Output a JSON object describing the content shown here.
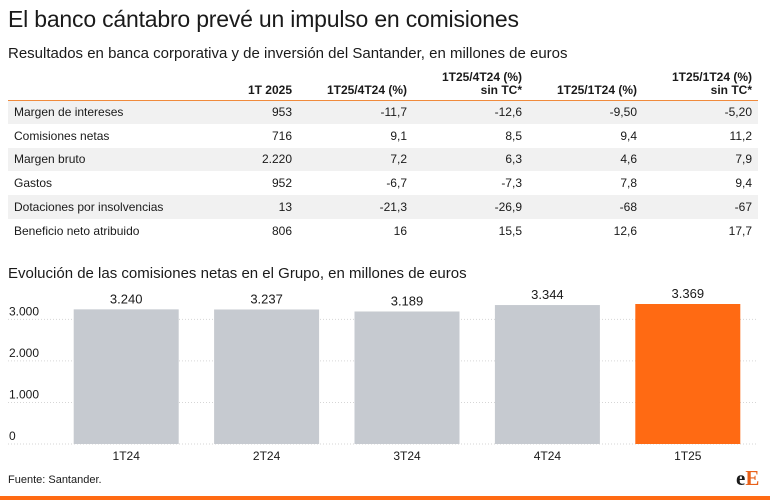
{
  "title": "El banco cántabro prevé un impulso en comisiones",
  "table_subtitle": "Resultados en banca corporativa y de inversión del Santander, en millones de euros",
  "table": {
    "headers": [
      "",
      "1T 2025",
      "1T25/4T24 (%)",
      "1T25/4T24 (%)\nsin TC*",
      "1T25/1T24 (%)",
      "1T25/1T24 (%)\nsin TC*"
    ],
    "rows": [
      [
        "Margen de intereses",
        "953",
        "-11,7",
        "-12,6",
        "-9,50",
        "-5,20"
      ],
      [
        "Comisiones netas",
        "716",
        "9,1",
        "8,5",
        "9,4",
        "11,2"
      ],
      [
        "Margen bruto",
        "2.220",
        "7,2",
        "6,3",
        "4,6",
        "7,9"
      ],
      [
        "Gastos",
        "952",
        "-6,7",
        "-7,3",
        "7,8",
        "9,4"
      ],
      [
        "Dotaciones por insolvencias",
        "13",
        "-21,3",
        "-26,9",
        "-68",
        "-67"
      ],
      [
        "Beneficio neto atribuido",
        "806",
        "16",
        "15,5",
        "12,6",
        "17,7"
      ]
    ]
  },
  "chart_title": "Evolución de las comisiones netas en el Grupo, en millones de euros",
  "chart_data": {
    "type": "bar",
    "categories": [
      "1T24",
      "2T24",
      "3T24",
      "4T24",
      "1T25"
    ],
    "values": [
      3240,
      3237,
      3189,
      3344,
      3369
    ],
    "value_labels": [
      "3.240",
      "3.237",
      "3.189",
      "3.344",
      "3.369"
    ],
    "yticks": [
      0,
      1000,
      2000,
      3000
    ],
    "ytick_labels": [
      "0",
      "1.000",
      "2.000",
      "3.000"
    ],
    "ylim": [
      0,
      3369
    ],
    "title": "",
    "xlabel": "",
    "ylabel": "",
    "grid": true,
    "colors": {
      "default": "#c6cad0",
      "highlight": "#ff6a13",
      "grid": "#d6d6d6"
    },
    "highlight_index": 4
  },
  "source": "Fuente: Santander.",
  "logo": {
    "e": "e",
    "E": "E"
  }
}
